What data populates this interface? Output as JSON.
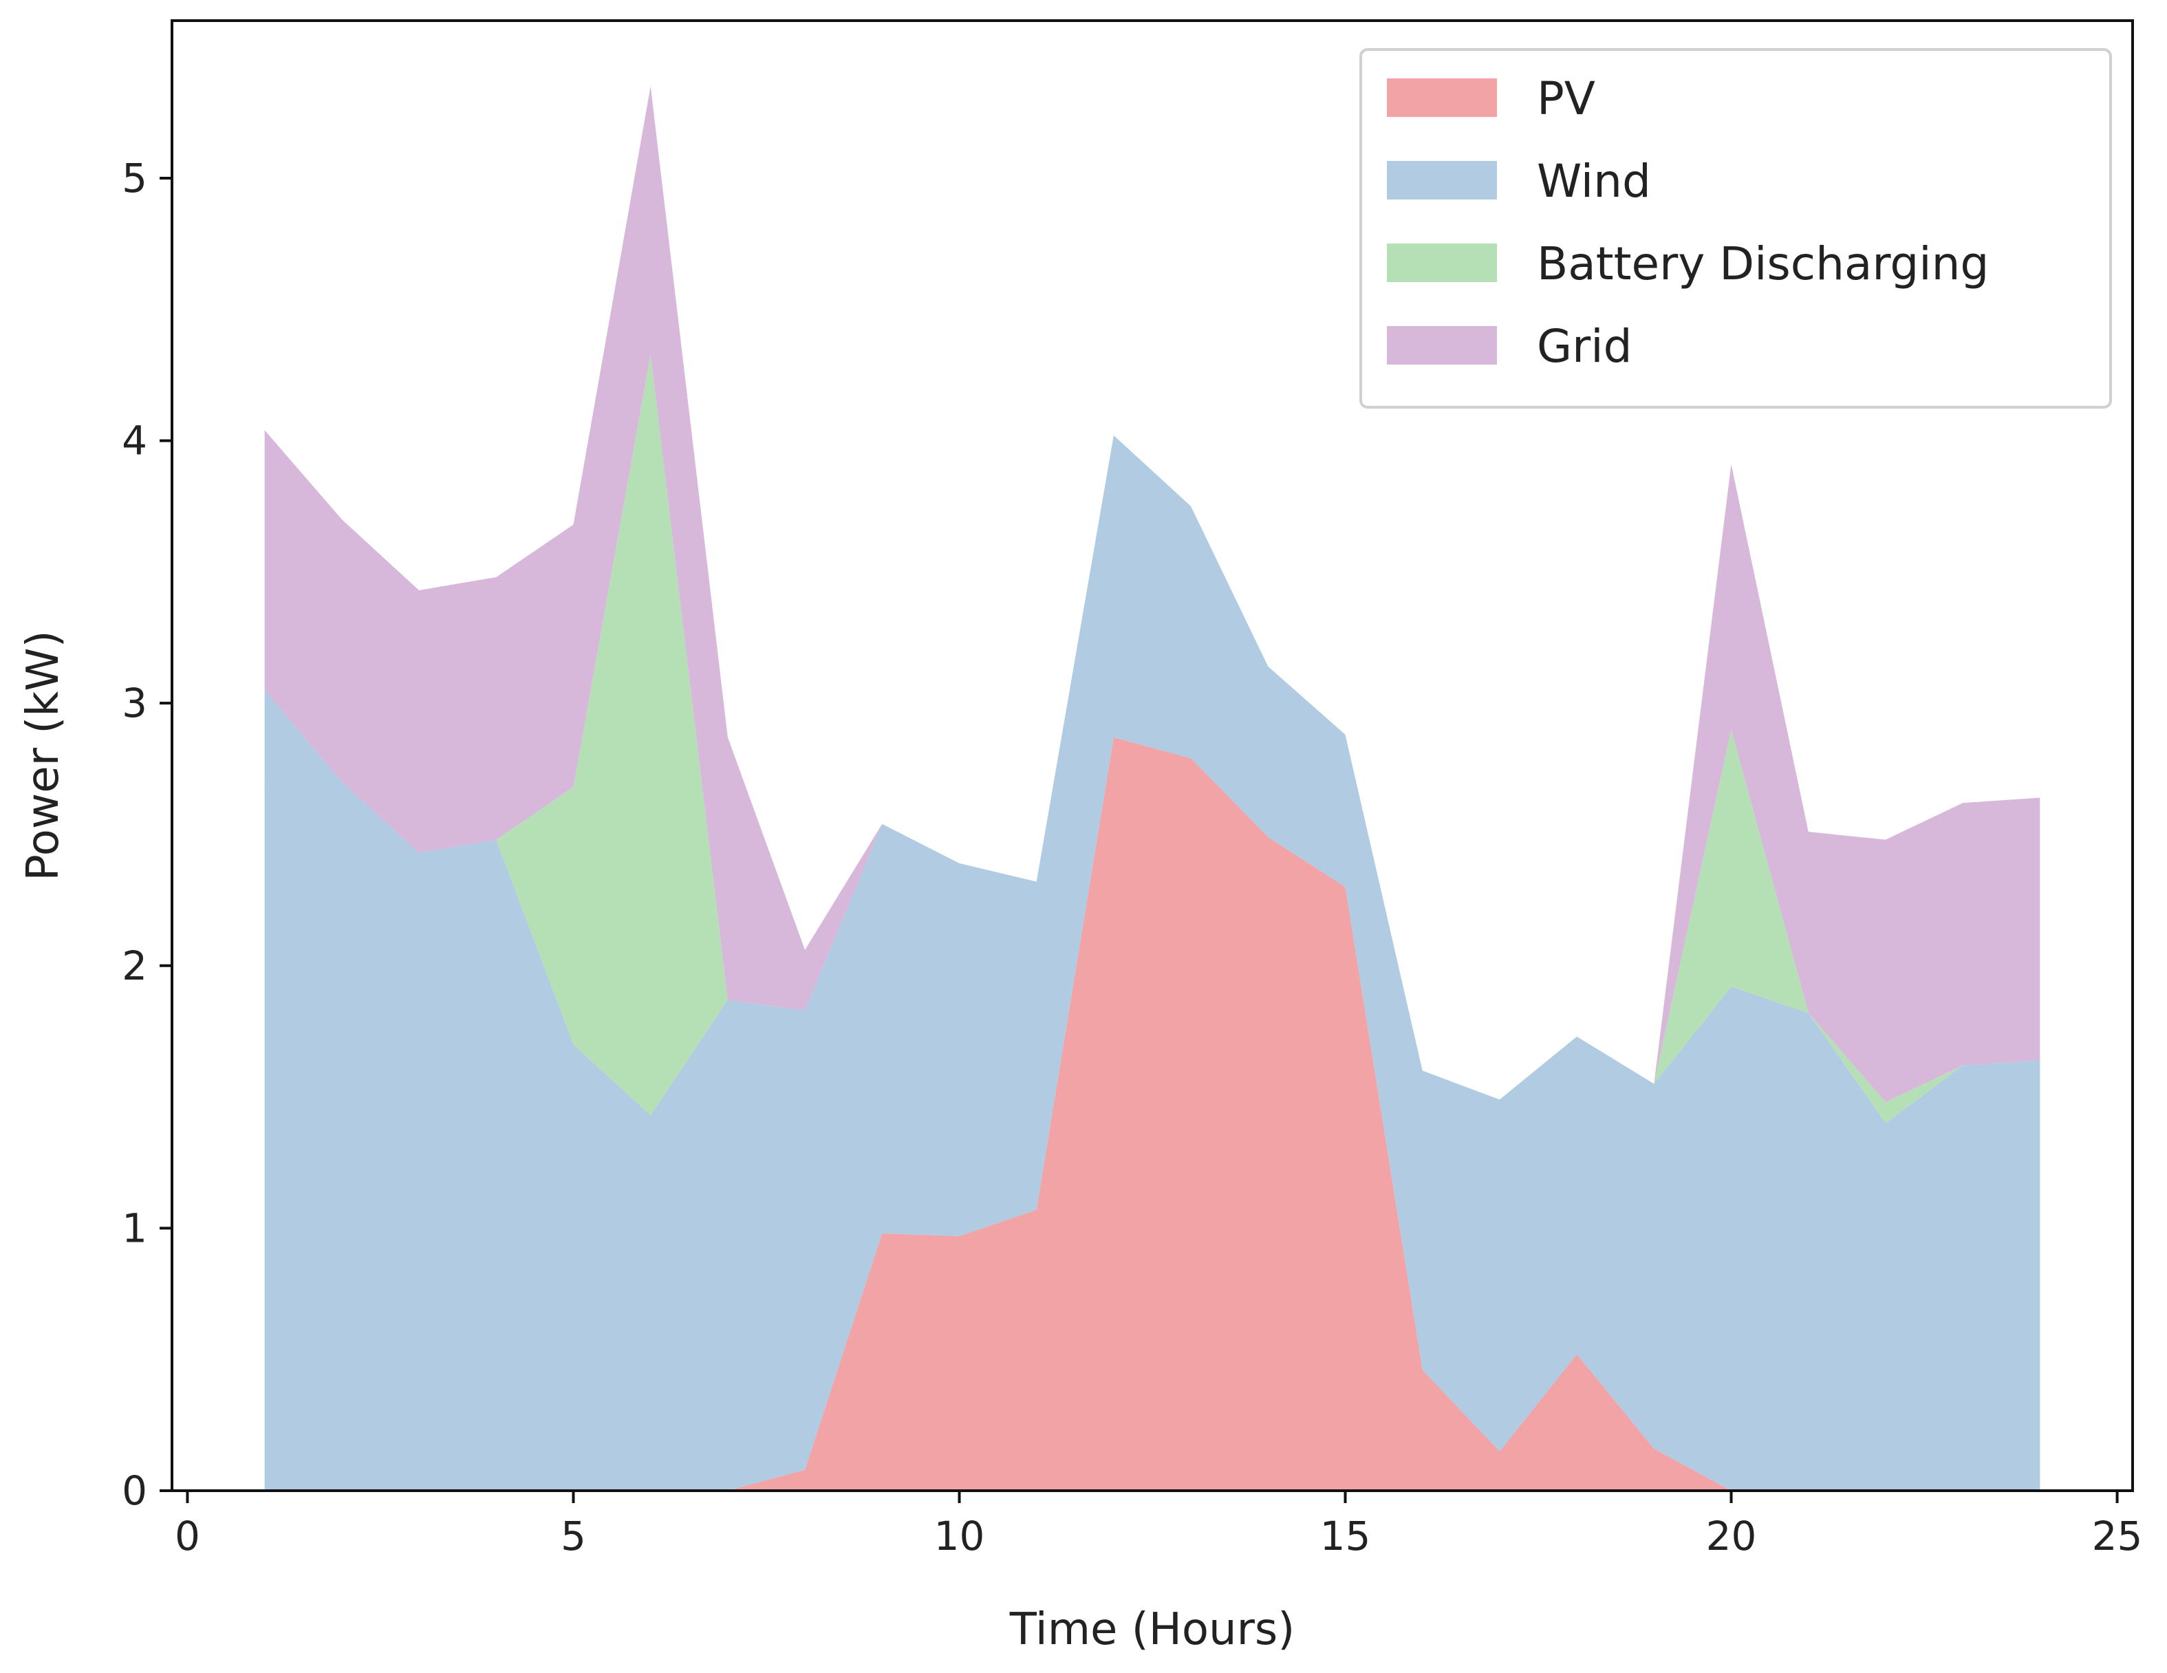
{
  "chart_data": {
    "type": "area",
    "stacked": true,
    "title": "",
    "xlabel": "Time (Hours)",
    "ylabel": "Power (kW)",
    "xlim": [
      -0.2,
      25.2
    ],
    "ylim": [
      0,
      5.6
    ],
    "xticks": [
      0,
      5,
      10,
      15,
      20,
      25
    ],
    "yticks": [
      0,
      1,
      2,
      3,
      4,
      5
    ],
    "grid": false,
    "legend_position": "top-right",
    "x": [
      1,
      2,
      3,
      4,
      5,
      6,
      7,
      8,
      9,
      10,
      11,
      12,
      13,
      14,
      15,
      16,
      17,
      18,
      19,
      20,
      21,
      22,
      23,
      24
    ],
    "series": [
      {
        "name": "PV",
        "color": "#f2a3a5",
        "values": [
          0,
          0,
          0,
          0,
          0,
          0,
          0,
          0.08,
          0.98,
          0.97,
          1.07,
          2.87,
          2.79,
          2.49,
          2.3,
          0.46,
          0.15,
          0.52,
          0.16,
          0,
          0,
          0,
          0,
          0
        ]
      },
      {
        "name": "Wind",
        "color": "#b0cbe2",
        "values": [
          3.05,
          2.7,
          2.43,
          2.48,
          1.7,
          1.43,
          1.87,
          1.75,
          1.56,
          1.42,
          1.25,
          1.15,
          0.96,
          0.65,
          0.58,
          1.14,
          1.34,
          1.21,
          1.39,
          1.92,
          1.82,
          1.4,
          1.62,
          1.64
        ]
      },
      {
        "name": "Battery Discharging",
        "color": "#b5e0b6",
        "values": [
          0,
          0,
          0,
          0,
          0.98,
          2.9,
          0,
          0,
          0,
          0,
          0,
          0,
          0,
          0,
          0,
          0,
          0,
          0,
          0,
          0.98,
          0,
          0.08,
          0,
          0
        ]
      },
      {
        "name": "Grid",
        "color": "#d7b8da",
        "values": [
          0.99,
          1.0,
          1.0,
          1.0,
          1.0,
          1.02,
          1.0,
          0.23,
          0,
          0,
          0,
          0,
          0,
          0,
          0,
          0,
          0,
          0,
          0,
          1.01,
          0.69,
          1.0,
          1.0,
          1.0
        ]
      }
    ]
  }
}
